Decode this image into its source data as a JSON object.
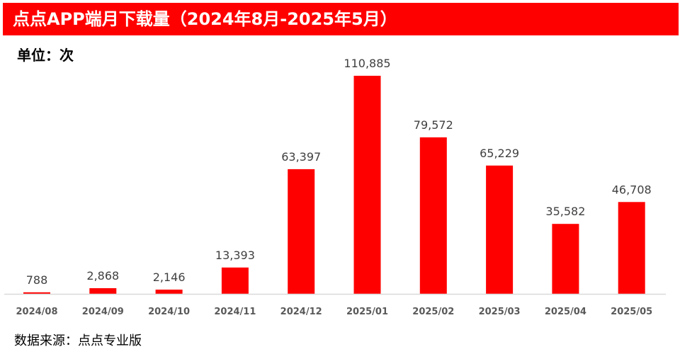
{
  "title": "点点APP端月下载量（2024年8月-2025年5月）",
  "unit_label": "单位：次",
  "source": "数据来源：点点专业版",
  "colors": {
    "accent": "#ff0000",
    "bar": "#ff0000",
    "axis": "#d9d9d9"
  },
  "chart_data": {
    "type": "bar",
    "title": "点点APP端月下载量（2024年8月-2025年5月）",
    "xlabel": "",
    "ylabel": "",
    "categories": [
      "2024/08",
      "2024/09",
      "2024/10",
      "2024/11",
      "2024/12",
      "2025/01",
      "2025/02",
      "2025/03",
      "2025/04",
      "2025/05"
    ],
    "values": [
      788,
      2868,
      2146,
      13393,
      63397,
      110885,
      79572,
      65229,
      35582,
      46708
    ],
    "value_labels": [
      "788",
      "2,868",
      "2,146",
      "13,393",
      "63,397",
      "110,885",
      "79,572",
      "65,229",
      "35,582",
      "46,708"
    ],
    "ylim": [
      0,
      110885
    ],
    "grid": false,
    "legend": "none"
  }
}
